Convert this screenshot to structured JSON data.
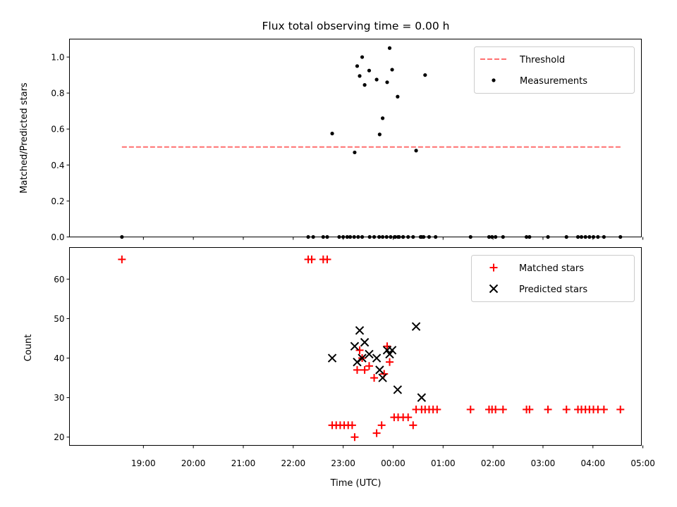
{
  "chart_data": [
    {
      "type": "scatter",
      "title": "Flux total observing time = 0.00 h",
      "xlabel": "",
      "ylabel": "Matched/Predicted stars",
      "ylim": [
        0,
        1.1
      ],
      "yticks": [
        0.0,
        0.2,
        0.4,
        0.6,
        0.8,
        1.0
      ],
      "yticklabels": [
        "0.0",
        "0.2",
        "0.4",
        "0.6",
        "0.8",
        "1.0"
      ],
      "legend_position": "top-right",
      "threshold": {
        "name": "Threshold",
        "value": 0.5,
        "x_start": -5.43,
        "x_end": 4.58,
        "color": "#ff7070"
      },
      "series": [
        {
          "name": "Measurements",
          "color": "#000000",
          "x": [
            -5.43,
            -1.7,
            -1.6,
            -1.4,
            -1.32,
            -1.08,
            -1.0,
            -0.92,
            -0.86,
            -0.78,
            -0.7,
            -0.62,
            -0.47,
            -0.38,
            -0.28,
            -0.21,
            -0.13,
            -0.05,
            0.03,
            0.1,
            0.2,
            0.3,
            0.4,
            0.55,
            0.61,
            0.72,
            0.85,
            1.55,
            1.92,
            1.98,
            2.05,
            2.2,
            2.67,
            2.73,
            3.1,
            3.47,
            3.7,
            3.77,
            3.85,
            3.93,
            4.01,
            4.1,
            4.22,
            4.55,
            -1.22,
            -0.77,
            -0.72,
            -0.67,
            -0.62,
            -0.57,
            -0.48,
            -0.33,
            -0.27,
            -0.21,
            -0.12,
            -0.07,
            -0.02,
            0.09,
            0.46,
            0.04,
            0.12,
            0.2,
            0.64,
            0.57
          ],
          "y": [
            0,
            0,
            0,
            0,
            0,
            0,
            0,
            0,
            0,
            0,
            0,
            0,
            0,
            0,
            0,
            0,
            0,
            0,
            0,
            0,
            0,
            0,
            0,
            0,
            0,
            0,
            0,
            0,
            0,
            0,
            0,
            0,
            0,
            0,
            0,
            0,
            0,
            0,
            0,
            0,
            0,
            0,
            0,
            0,
            0.575,
            0.47,
            0.95,
            0.895,
            1.0,
            0.845,
            0.925,
            0.875,
            0.57,
            0.66,
            0.86,
            1.05,
            0.93,
            0.78,
            0.48,
            0,
            0,
            0,
            0.9,
            0
          ]
        }
      ]
    },
    {
      "type": "scatter",
      "title": "",
      "xlabel": "Time (UTC)",
      "ylabel": "Count",
      "ylim": [
        17.9,
        68
      ],
      "yticks": [
        20,
        30,
        40,
        50,
        60
      ],
      "yticklabels": [
        "20",
        "30",
        "40",
        "50",
        "60"
      ],
      "xlim": [
        -6.48,
        4.97
      ],
      "xticks": [
        -5,
        -4,
        -3,
        -2,
        -1,
        0,
        1,
        2,
        3,
        4,
        5
      ],
      "xticklabels": [
        "19:00",
        "20:00",
        "21:00",
        "22:00",
        "23:00",
        "00:00",
        "01:00",
        "02:00",
        "03:00",
        "04:00",
        "05:00"
      ],
      "legend_position": "top-right",
      "series": [
        {
          "name": "Matched stars",
          "marker": "+",
          "color": "#ff0000",
          "x": [
            -5.43,
            -1.7,
            -1.63,
            -1.4,
            -1.32,
            -1.22,
            -1.14,
            -1.06,
            -0.98,
            -0.9,
            -0.82,
            -0.77,
            -0.72,
            -0.67,
            -0.62,
            -0.57,
            -0.48,
            -0.38,
            -0.33,
            -0.23,
            -0.18,
            -0.12,
            -0.07,
            0.02,
            0.1,
            0.2,
            0.3,
            0.4,
            0.46,
            0.57,
            0.64,
            0.72,
            0.8,
            0.88,
            1.55,
            1.92,
            1.98,
            2.05,
            2.2,
            2.67,
            2.73,
            3.1,
            3.47,
            3.7,
            3.77,
            3.85,
            3.93,
            4.01,
            4.1,
            4.22,
            4.55
          ],
          "y": [
            65,
            65,
            65,
            65,
            65,
            23,
            23,
            23,
            23,
            23,
            23,
            20,
            37,
            42,
            40,
            37,
            38,
            35,
            21,
            23,
            36,
            43,
            39,
            25,
            25,
            25,
            25,
            23,
            27,
            27,
            27,
            27,
            27,
            27,
            27,
            27,
            27,
            27,
            27,
            27,
            27,
            27,
            27,
            27,
            27,
            27,
            27,
            27,
            27,
            27,
            27
          ]
        },
        {
          "name": "Predicted stars",
          "marker": "x",
          "color": "#000000",
          "x": [
            -1.22,
            -0.77,
            -0.72,
            -0.67,
            -0.62,
            -0.57,
            -0.48,
            -0.33,
            -0.27,
            -0.21,
            -0.12,
            -0.07,
            -0.02,
            0.09,
            0.46,
            0.57
          ],
          "y": [
            40,
            43,
            39,
            47,
            40,
            44,
            41,
            40,
            37,
            35,
            42,
            41,
            42,
            32,
            48,
            30
          ]
        }
      ]
    }
  ]
}
